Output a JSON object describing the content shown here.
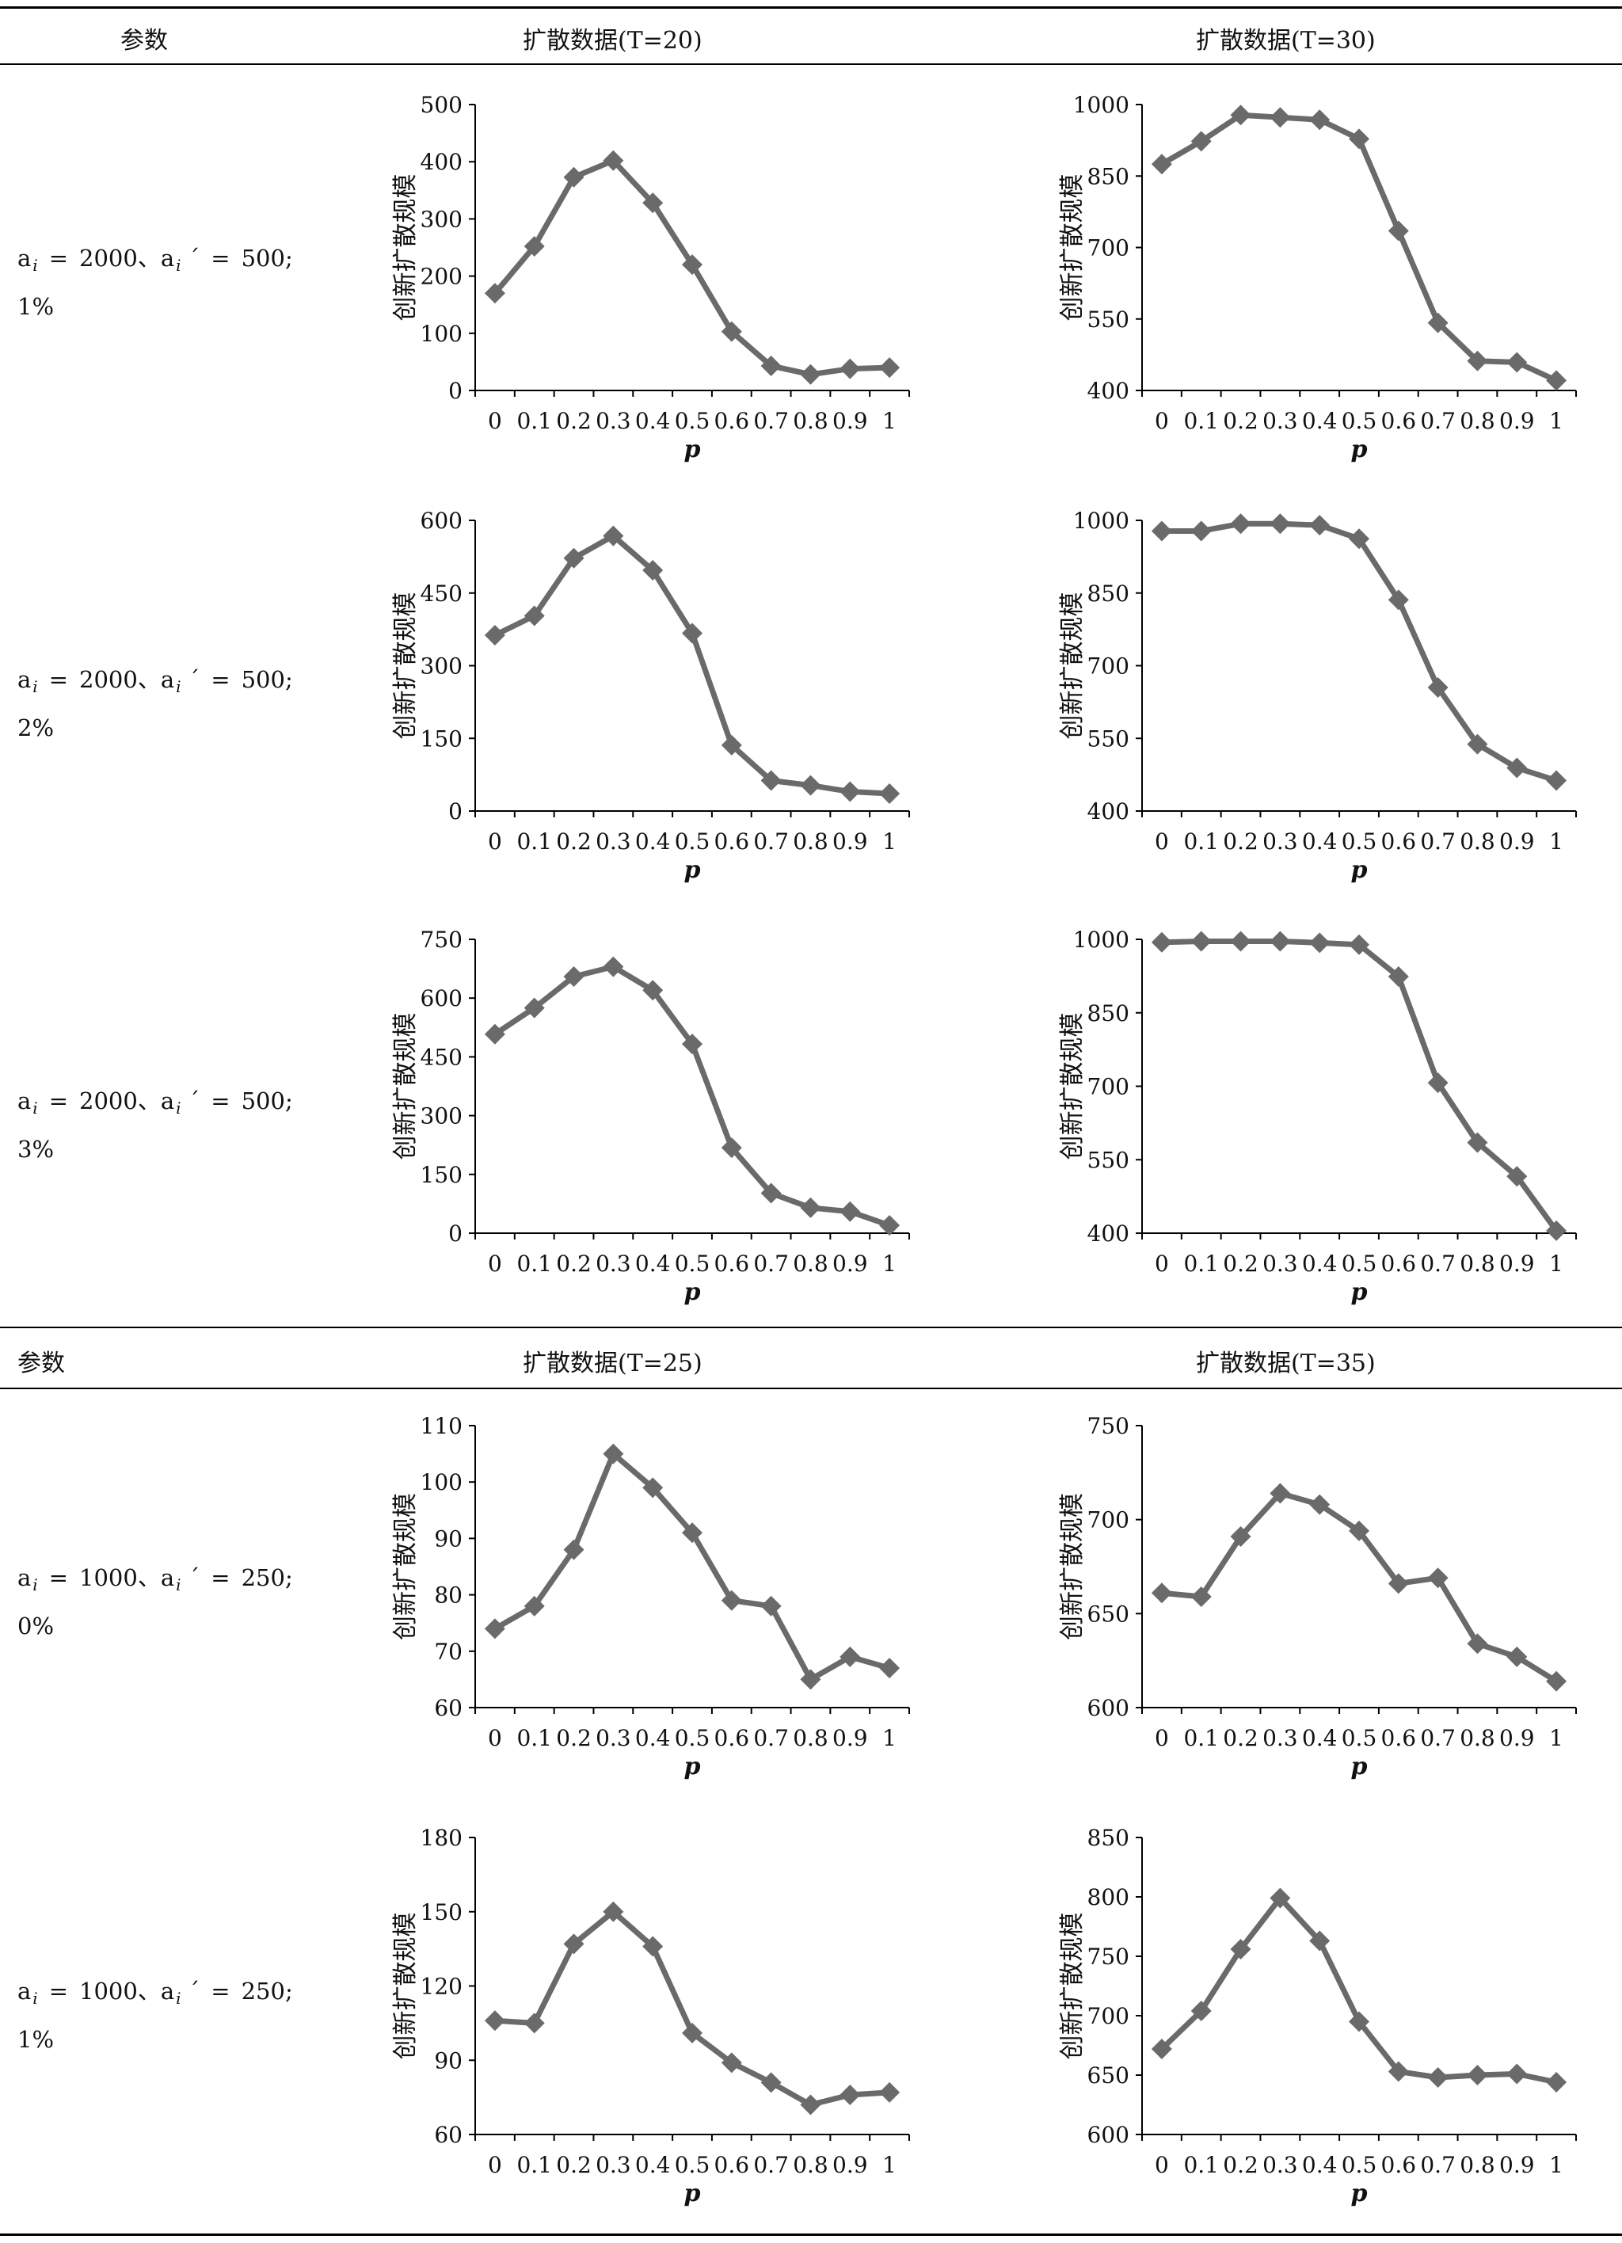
{
  "table": {
    "sections": [
      {
        "param_header": "参数",
        "col_headers": [
          "扩散数据(T=20)",
          "扩散数据(T=30)"
        ],
        "rows": [
          {
            "a": "2000",
            "ap": "500",
            "pct": "1%"
          },
          {
            "a": "2000",
            "ap": "500",
            "pct": "2%"
          },
          {
            "a": "2000",
            "ap": "500",
            "pct": "3%"
          }
        ]
      },
      {
        "param_header": "参数",
        "col_headers": [
          "扩散数据(T=25)",
          "扩散数据(T=35)"
        ],
        "rows": [
          {
            "a": "1000",
            "ap": "250",
            "pct": "0%"
          },
          {
            "a": "1000",
            "ap": "250",
            "pct": "1%"
          }
        ]
      }
    ],
    "param_symbol": "a",
    "param_subscript": "i",
    "param_prime": "´",
    "param_equals": "=",
    "param_separator": "、",
    "param_end": ";"
  },
  "chart_style": {
    "line_color": "#6a6a6a",
    "marker_color": "#6a6a6a",
    "axis_color": "#000000",
    "grid": false,
    "legend": "none"
  },
  "chart_data": [
    {
      "type": "line",
      "xlabel": "p",
      "ylabel": "创新扩散规模",
      "x": [
        "0",
        "0.1",
        "0.2",
        "0.3",
        "0.4",
        "0.5",
        "0.6",
        "0.7",
        "0.8",
        "0.9",
        "1"
      ],
      "ylim": [
        0,
        500
      ],
      "yticks": [
        0,
        100,
        200,
        300,
        400,
        500
      ],
      "values": [
        170,
        252,
        373,
        402,
        328,
        220,
        103,
        43,
        28,
        38,
        40
      ]
    },
    {
      "type": "line",
      "xlabel": "p",
      "ylabel": "创新扩散规模",
      "x": [
        "0",
        "0.1",
        "0.2",
        "0.3",
        "0.4",
        "0.5",
        "0.6",
        "0.7",
        "0.8",
        "0.9",
        "1"
      ],
      "ylim": [
        400,
        1000
      ],
      "yticks": [
        400,
        550,
        700,
        850,
        1000
      ],
      "values": [
        875,
        923,
        978,
        973,
        968,
        928,
        735,
        542,
        462,
        459,
        421
      ]
    },
    {
      "type": "line",
      "xlabel": "p",
      "ylabel": "创新扩散规模",
      "x": [
        "0",
        "0.1",
        "0.2",
        "0.3",
        "0.4",
        "0.5",
        "0.6",
        "0.7",
        "0.8",
        "0.9",
        "1"
      ],
      "ylim": [
        0,
        600
      ],
      "yticks": [
        0,
        150,
        300,
        450,
        600
      ],
      "values": [
        363,
        403,
        522,
        568,
        497,
        367,
        136,
        63,
        53,
        40,
        36
      ]
    },
    {
      "type": "line",
      "xlabel": "p",
      "ylabel": "创新扩散规模",
      "x": [
        "0",
        "0.1",
        "0.2",
        "0.3",
        "0.4",
        "0.5",
        "0.6",
        "0.7",
        "0.8",
        "0.9",
        "1"
      ],
      "ylim": [
        400,
        1000
      ],
      "yticks": [
        400,
        550,
        700,
        850,
        1000
      ],
      "values": [
        978,
        978,
        993,
        993,
        990,
        962,
        836,
        655,
        538,
        489,
        463
      ]
    },
    {
      "type": "line",
      "xlabel": "p",
      "ylabel": "创新扩散规模",
      "x": [
        "0",
        "0.1",
        "0.2",
        "0.3",
        "0.4",
        "0.5",
        "0.6",
        "0.7",
        "0.8",
        "0.9",
        "1"
      ],
      "ylim": [
        0,
        750
      ],
      "yticks": [
        0,
        150,
        300,
        450,
        600,
        750
      ],
      "values": [
        508,
        575,
        655,
        680,
        620,
        483,
        218,
        102,
        65,
        55,
        20
      ]
    },
    {
      "type": "line",
      "xlabel": "p",
      "ylabel": "创新扩散规模",
      "x": [
        "0",
        "0.1",
        "0.2",
        "0.3",
        "0.4",
        "0.5",
        "0.6",
        "0.7",
        "0.8",
        "0.9",
        "1"
      ],
      "ylim": [
        400,
        1000
      ],
      "yticks": [
        400,
        550,
        700,
        850,
        1000
      ],
      "values": [
        994,
        996,
        996,
        996,
        993,
        989,
        924,
        707,
        585,
        516,
        405
      ]
    },
    {
      "type": "line",
      "xlabel": "p",
      "ylabel": "创新扩散规模",
      "x": [
        "0",
        "0.1",
        "0.2",
        "0.3",
        "0.4",
        "0.5",
        "0.6",
        "0.7",
        "0.8",
        "0.9",
        "1"
      ],
      "ylim": [
        60,
        110
      ],
      "yticks": [
        60,
        70,
        80,
        90,
        100,
        110
      ],
      "values": [
        74,
        78,
        88,
        105,
        99,
        91,
        79,
        78,
        65,
        69,
        67
      ]
    },
    {
      "type": "line",
      "xlabel": "p",
      "ylabel": "创新扩散规模",
      "x": [
        "0",
        "0.1",
        "0.2",
        "0.3",
        "0.4",
        "0.5",
        "0.6",
        "0.7",
        "0.8",
        "0.9",
        "1"
      ],
      "ylim": [
        600,
        750
      ],
      "yticks": [
        600,
        650,
        700,
        750
      ],
      "values": [
        661,
        659,
        691,
        714,
        708,
        694,
        666,
        669,
        634,
        627,
        614
      ]
    },
    {
      "type": "line",
      "xlabel": "p",
      "ylabel": "创新扩散规模",
      "x": [
        "0",
        "0.1",
        "0.2",
        "0.3",
        "0.4",
        "0.5",
        "0.6",
        "0.7",
        "0.8",
        "0.9",
        "1"
      ],
      "ylim": [
        60,
        180
      ],
      "yticks": [
        60,
        90,
        120,
        150,
        180
      ],
      "values": [
        106,
        105,
        137,
        150,
        136,
        101,
        89,
        81,
        72,
        76,
        77
      ]
    },
    {
      "type": "line",
      "xlabel": "p",
      "ylabel": "创新扩散规模",
      "x": [
        "0",
        "0.1",
        "0.2",
        "0.3",
        "0.4",
        "0.5",
        "0.6",
        "0.7",
        "0.8",
        "0.9",
        "1"
      ],
      "ylim": [
        600,
        850
      ],
      "yticks": [
        600,
        650,
        700,
        750,
        800,
        850
      ],
      "values": [
        672,
        704,
        756,
        799,
        763,
        695,
        653,
        648,
        650,
        651,
        644
      ]
    }
  ]
}
